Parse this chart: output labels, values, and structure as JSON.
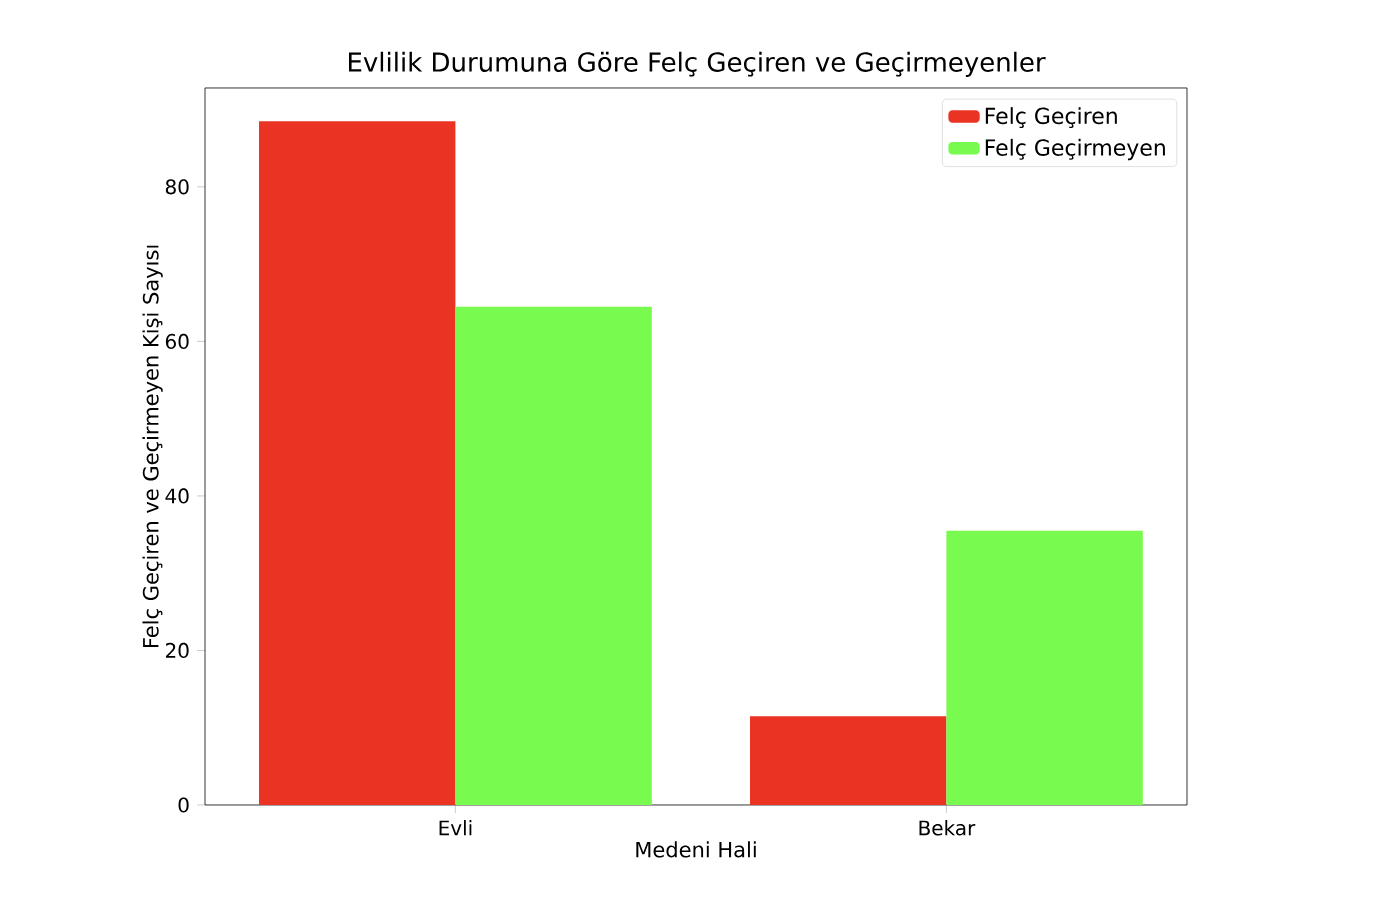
{
  "chart_data": {
    "type": "bar",
    "title": "Evlilik Durumuna Göre Felç Geçiren ve Geçirmeyenler",
    "xlabel": "Medeni Hali",
    "ylabel": "Felç Geçiren ve Geçirmeyen Kişi Sayısı",
    "categories": [
      "Evli",
      "Bekar"
    ],
    "series": [
      {
        "name": "Felç Geçiren",
        "color": "#ea3323",
        "values": [
          88.5,
          11.5
        ]
      },
      {
        "name": "Felç Geçirmeyen",
        "color": "#78fa4f",
        "values": [
          64.5,
          35.5
        ]
      }
    ],
    "ylim": [
      0,
      92.8
    ],
    "yticks": [
      0,
      20,
      40,
      60,
      80
    ],
    "legend": "top right",
    "grid": false
  }
}
